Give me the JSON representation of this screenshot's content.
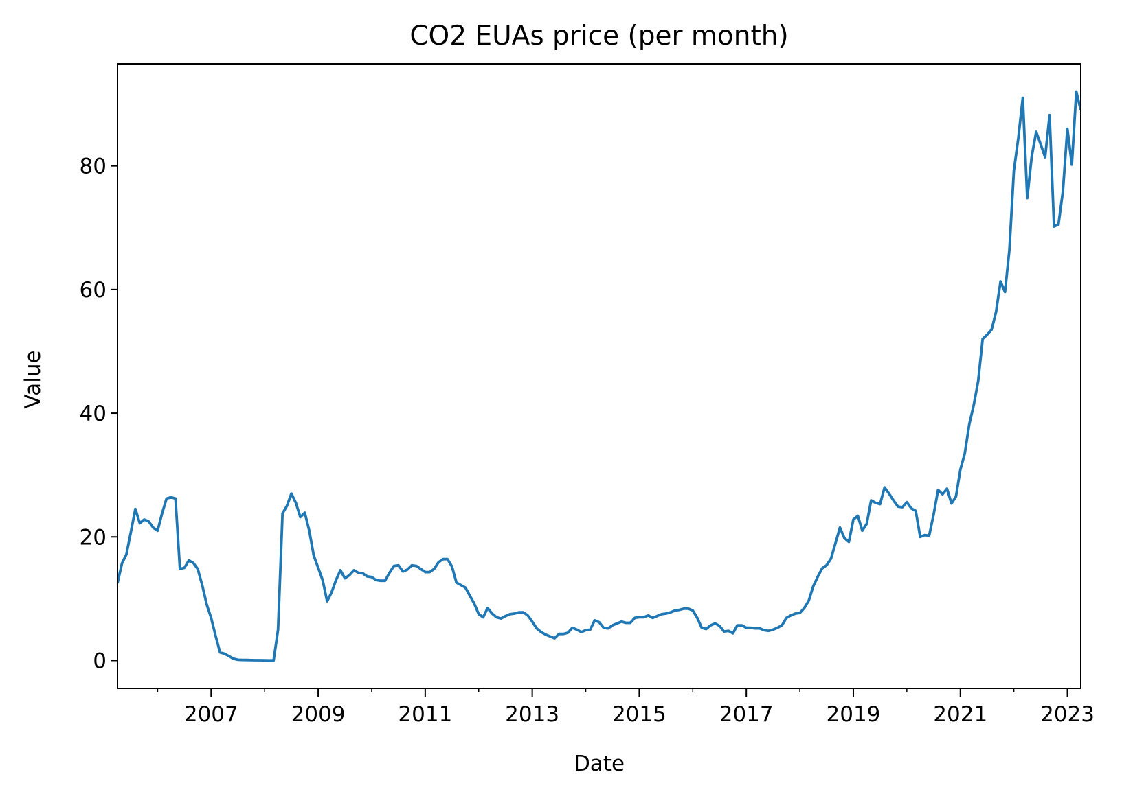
{
  "chart_data": {
    "type": "line",
    "title": "CO2 EUAs price (per month)",
    "xlabel": "Date",
    "ylabel": "Value",
    "x_range": [
      "2005-04",
      "2023-04"
    ],
    "ylim": [
      -4.5,
      96.5
    ],
    "x_ticks": [
      "2007",
      "2009",
      "2011",
      "2013",
      "2015",
      "2017",
      "2019",
      "2021",
      "2023"
    ],
    "y_ticks": [
      "0",
      "20",
      "40",
      "60",
      "80"
    ],
    "grid": false,
    "legend": "none",
    "series": [
      {
        "color": "#1f77b4",
        "points": [
          [
            "2005-04",
            12.5
          ],
          [
            "2005-05",
            15.7
          ],
          [
            "2005-06",
            17.2
          ],
          [
            "2005-07",
            20.8
          ],
          [
            "2005-08",
            24.5
          ],
          [
            "2005-09",
            22.2
          ],
          [
            "2005-10",
            22.8
          ],
          [
            "2005-11",
            22.5
          ],
          [
            "2005-12",
            21.5
          ],
          [
            "2006-01",
            21.0
          ],
          [
            "2006-02",
            23.8
          ],
          [
            "2006-03",
            26.2
          ],
          [
            "2006-04",
            26.4
          ],
          [
            "2006-05",
            26.2
          ],
          [
            "2006-06",
            14.8
          ],
          [
            "2006-07",
            15.0
          ],
          [
            "2006-08",
            16.2
          ],
          [
            "2006-09",
            15.8
          ],
          [
            "2006-10",
            14.8
          ],
          [
            "2006-11",
            12.2
          ],
          [
            "2006-12",
            9.1
          ],
          [
            "2007-01",
            6.9
          ],
          [
            "2007-02",
            4.0
          ],
          [
            "2007-03",
            1.3
          ],
          [
            "2007-04",
            1.1
          ],
          [
            "2007-05",
            0.7
          ],
          [
            "2007-06",
            0.3
          ],
          [
            "2007-07",
            0.12
          ],
          [
            "2007-08",
            0.1
          ],
          [
            "2007-09",
            0.08
          ],
          [
            "2007-10",
            0.06
          ],
          [
            "2007-11",
            0.05
          ],
          [
            "2007-12",
            0.05
          ],
          [
            "2008-01",
            0.03
          ],
          [
            "2008-02",
            0.02
          ],
          [
            "2008-03",
            0.02
          ],
          [
            "2008-04",
            5.0
          ],
          [
            "2008-05",
            23.8
          ],
          [
            "2008-06",
            25.0
          ],
          [
            "2008-07",
            27.0
          ],
          [
            "2008-08",
            25.5
          ],
          [
            "2008-09",
            23.2
          ],
          [
            "2008-10",
            23.9
          ],
          [
            "2008-11",
            21.0
          ],
          [
            "2008-12",
            17.0
          ],
          [
            "2009-01",
            15.0
          ],
          [
            "2009-02",
            13.0
          ],
          [
            "2009-03",
            9.6
          ],
          [
            "2009-04",
            11.0
          ],
          [
            "2009-05",
            13.0
          ],
          [
            "2009-06",
            14.6
          ],
          [
            "2009-07",
            13.3
          ],
          [
            "2009-08",
            13.8
          ],
          [
            "2009-09",
            14.6
          ],
          [
            "2009-10",
            14.2
          ],
          [
            "2009-11",
            14.1
          ],
          [
            "2009-12",
            13.6
          ],
          [
            "2010-01",
            13.5
          ],
          [
            "2010-02",
            13.0
          ],
          [
            "2010-03",
            12.9
          ],
          [
            "2010-04",
            12.9
          ],
          [
            "2010-05",
            14.2
          ],
          [
            "2010-06",
            15.3
          ],
          [
            "2010-07",
            15.4
          ],
          [
            "2010-08",
            14.4
          ],
          [
            "2010-09",
            14.7
          ],
          [
            "2010-10",
            15.4
          ],
          [
            "2010-11",
            15.3
          ],
          [
            "2010-12",
            14.8
          ],
          [
            "2011-01",
            14.3
          ],
          [
            "2011-02",
            14.3
          ],
          [
            "2011-03",
            14.8
          ],
          [
            "2011-04",
            15.9
          ],
          [
            "2011-05",
            16.4
          ],
          [
            "2011-06",
            16.4
          ],
          [
            "2011-07",
            15.2
          ],
          [
            "2011-08",
            12.6
          ],
          [
            "2011-09",
            12.2
          ],
          [
            "2011-10",
            11.8
          ],
          [
            "2011-11",
            10.5
          ],
          [
            "2011-12",
            9.2
          ],
          [
            "2012-01",
            7.5
          ],
          [
            "2012-02",
            7.0
          ],
          [
            "2012-03",
            8.5
          ],
          [
            "2012-04",
            7.6
          ],
          [
            "2012-05",
            7.0
          ],
          [
            "2012-06",
            6.8
          ],
          [
            "2012-07",
            7.2
          ],
          [
            "2012-08",
            7.5
          ],
          [
            "2012-09",
            7.6
          ],
          [
            "2012-10",
            7.8
          ],
          [
            "2012-11",
            7.8
          ],
          [
            "2012-12",
            7.3
          ],
          [
            "2013-01",
            6.3
          ],
          [
            "2013-02",
            5.2
          ],
          [
            "2013-03",
            4.6
          ],
          [
            "2013-04",
            4.2
          ],
          [
            "2013-05",
            3.9
          ],
          [
            "2013-06",
            3.6
          ],
          [
            "2013-07",
            4.3
          ],
          [
            "2013-08",
            4.3
          ],
          [
            "2013-09",
            4.5
          ],
          [
            "2013-10",
            5.3
          ],
          [
            "2013-11",
            5.0
          ],
          [
            "2013-12",
            4.6
          ],
          [
            "2014-01",
            4.9
          ],
          [
            "2014-02",
            5.0
          ],
          [
            "2014-03",
            6.5
          ],
          [
            "2014-04",
            6.2
          ],
          [
            "2014-05",
            5.3
          ],
          [
            "2014-06",
            5.2
          ],
          [
            "2014-07",
            5.7
          ],
          [
            "2014-08",
            6.0
          ],
          [
            "2014-09",
            6.3
          ],
          [
            "2014-10",
            6.1
          ],
          [
            "2014-11",
            6.1
          ],
          [
            "2014-12",
            6.9
          ],
          [
            "2015-01",
            7.0
          ],
          [
            "2015-02",
            7.0
          ],
          [
            "2015-03",
            7.3
          ],
          [
            "2015-04",
            6.9
          ],
          [
            "2015-05",
            7.2
          ],
          [
            "2015-06",
            7.5
          ],
          [
            "2015-07",
            7.6
          ],
          [
            "2015-08",
            7.8
          ],
          [
            "2015-09",
            8.1
          ],
          [
            "2015-10",
            8.2
          ],
          [
            "2015-11",
            8.4
          ],
          [
            "2015-12",
            8.4
          ],
          [
            "2016-01",
            8.1
          ],
          [
            "2016-02",
            6.9
          ],
          [
            "2016-03",
            5.3
          ],
          [
            "2016-04",
            5.1
          ],
          [
            "2016-05",
            5.7
          ],
          [
            "2016-06",
            6.0
          ],
          [
            "2016-07",
            5.6
          ],
          [
            "2016-08",
            4.7
          ],
          [
            "2016-09",
            4.8
          ],
          [
            "2016-10",
            4.4
          ],
          [
            "2016-11",
            5.7
          ],
          [
            "2016-12",
            5.7
          ],
          [
            "2017-01",
            5.3
          ],
          [
            "2017-02",
            5.3
          ],
          [
            "2017-03",
            5.2
          ],
          [
            "2017-04",
            5.2
          ],
          [
            "2017-05",
            4.9
          ],
          [
            "2017-06",
            4.8
          ],
          [
            "2017-07",
            5.0
          ],
          [
            "2017-08",
            5.3
          ],
          [
            "2017-09",
            5.7
          ],
          [
            "2017-10",
            6.9
          ],
          [
            "2017-11",
            7.3
          ],
          [
            "2017-12",
            7.6
          ],
          [
            "2018-01",
            7.7
          ],
          [
            "2018-02",
            8.5
          ],
          [
            "2018-03",
            9.7
          ],
          [
            "2018-04",
            12.0
          ],
          [
            "2018-05",
            13.5
          ],
          [
            "2018-06",
            14.9
          ],
          [
            "2018-07",
            15.4
          ],
          [
            "2018-08",
            16.5
          ],
          [
            "2018-09",
            19.0
          ],
          [
            "2018-10",
            21.5
          ],
          [
            "2018-11",
            19.8
          ],
          [
            "2018-12",
            19.2
          ],
          [
            "2019-01",
            22.8
          ],
          [
            "2019-02",
            23.4
          ],
          [
            "2019-03",
            21.0
          ],
          [
            "2019-04",
            22.1
          ],
          [
            "2019-05",
            25.9
          ],
          [
            "2019-06",
            25.5
          ],
          [
            "2019-07",
            25.3
          ],
          [
            "2019-08",
            28.0
          ],
          [
            "2019-09",
            27.0
          ],
          [
            "2019-10",
            25.9
          ],
          [
            "2019-11",
            24.9
          ],
          [
            "2019-12",
            24.8
          ],
          [
            "2020-01",
            25.6
          ],
          [
            "2020-02",
            24.6
          ],
          [
            "2020-03",
            24.2
          ],
          [
            "2020-04",
            20.0
          ],
          [
            "2020-05",
            20.3
          ],
          [
            "2020-06",
            20.2
          ],
          [
            "2020-07",
            23.6
          ],
          [
            "2020-08",
            27.6
          ],
          [
            "2020-09",
            26.9
          ],
          [
            "2020-10",
            27.8
          ],
          [
            "2020-11",
            25.4
          ],
          [
            "2020-12",
            26.5
          ],
          [
            "2021-01",
            30.9
          ],
          [
            "2021-02",
            33.5
          ],
          [
            "2021-03",
            38.2
          ],
          [
            "2021-04",
            41.3
          ],
          [
            "2021-05",
            45.2
          ],
          [
            "2021-06",
            52.0
          ],
          [
            "2021-07",
            52.7
          ],
          [
            "2021-08",
            53.5
          ],
          [
            "2021-09",
            56.4
          ],
          [
            "2021-10",
            61.3
          ],
          [
            "2021-11",
            59.6
          ],
          [
            "2021-12",
            66.4
          ],
          [
            "2022-01",
            79.2
          ],
          [
            "2022-02",
            84.5
          ],
          [
            "2022-03",
            91.0
          ],
          [
            "2022-04",
            74.8
          ],
          [
            "2022-05",
            81.5
          ],
          [
            "2022-06",
            85.5
          ],
          [
            "2022-07",
            83.5
          ],
          [
            "2022-08",
            81.4
          ],
          [
            "2022-09",
            88.2
          ],
          [
            "2022-10",
            70.2
          ],
          [
            "2022-11",
            70.5
          ],
          [
            "2022-12",
            75.9
          ],
          [
            "2023-01",
            86.0
          ],
          [
            "2023-02",
            80.2
          ],
          [
            "2023-03",
            92.0
          ],
          [
            "2023-04",
            89.0
          ]
        ]
      }
    ]
  }
}
